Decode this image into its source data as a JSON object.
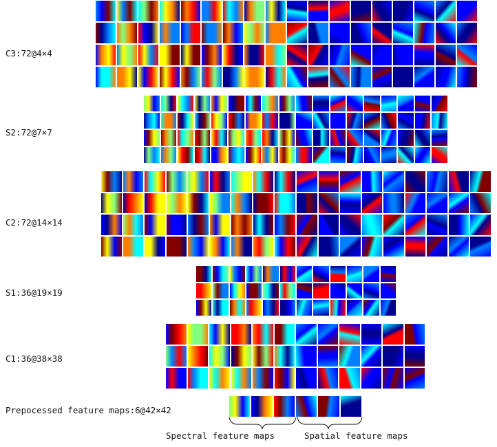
{
  "layers": [
    {
      "id": "c3",
      "label": "C3:72@4×4"
    },
    {
      "id": "s2",
      "label": "S2:72@7×7"
    },
    {
      "id": "c2",
      "label": "C2:72@14×14"
    },
    {
      "id": "s1",
      "label": "S1:36@19×19"
    },
    {
      "id": "c1",
      "label": "C1:36@38×38"
    },
    {
      "id": "pre",
      "label": "Prepocessed feature maps:6@42×42"
    }
  ],
  "captions": {
    "spectral": "Spectral feature maps",
    "spatial": "Spatial feature maps"
  },
  "colormap": [
    "#00008f",
    "#0000ff",
    "#0080ff",
    "#00ffff",
    "#80ff80",
    "#ffff00",
    "#ff8000",
    "#ff0000",
    "#800000"
  ]
}
